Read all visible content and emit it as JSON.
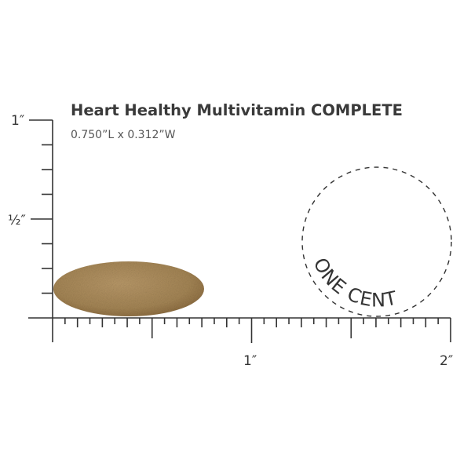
{
  "product": {
    "title": "Heart Healthy Multivitamin COMPLETE",
    "dimensions": "0.750”L x 0.312”W",
    "pill_length_in": 0.75,
    "pill_width_in": 0.312,
    "pill_color": "#a88a58"
  },
  "ruler": {
    "y_labels": {
      "one": "1″",
      "half": "½″"
    },
    "x_labels": {
      "one": "1″",
      "two": "2″"
    },
    "x_range_in": [
      0,
      2
    ],
    "y_range_in": [
      0,
      1
    ]
  },
  "coin": {
    "label": "ONE CENT"
  }
}
